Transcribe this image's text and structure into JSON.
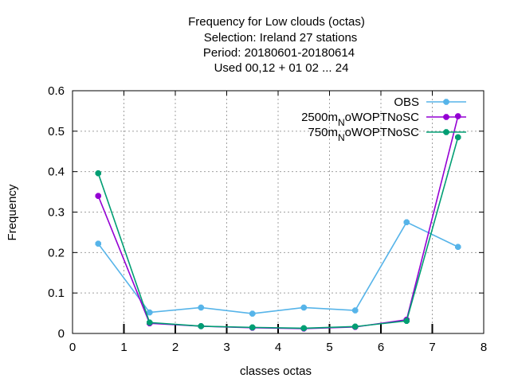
{
  "chart_data": {
    "type": "line",
    "title_lines": [
      "Frequency  for Low clouds (octas)",
      "Selection: Ireland      27 stations",
      "Period: 20180601-20180614",
      "Used  00,12  + 01 02 ... 24"
    ],
    "xlabel": "classes octas",
    "ylabel": "Frequency",
    "xlim": [
      0,
      8
    ],
    "ylim": [
      0,
      0.6
    ],
    "xticks": [
      "0",
      "1",
      "2",
      "3",
      "4",
      "5",
      "6",
      "7",
      "8"
    ],
    "yticks": [
      "0",
      "0.1",
      "0.2",
      "0.3",
      "0.4",
      "0.5",
      "0.6"
    ],
    "grid": true,
    "legend_position": "top-right",
    "x": [
      0.5,
      1.5,
      2.5,
      3.5,
      4.5,
      5.5,
      6.5,
      7.5
    ],
    "series": [
      {
        "name": "OBS",
        "color": "#56b4e9",
        "values": [
          0.222,
          0.052,
          0.064,
          0.049,
          0.064,
          0.057,
          0.275,
          0.214
        ]
      },
      {
        "name_main": "2500m",
        "name_sub": "N",
        "name_rest": "oWOPTNoSC",
        "color": "#9400d3",
        "values": [
          0.34,
          0.025,
          0.018,
          0.014,
          0.012,
          0.016,
          0.034,
          0.537
        ]
      },
      {
        "name_main": "750m",
        "name_sub": "N",
        "name_rest": "oWOPTNoSC",
        "color": "#009e73",
        "values": [
          0.396,
          0.027,
          0.018,
          0.015,
          0.013,
          0.017,
          0.031,
          0.485
        ]
      }
    ]
  }
}
